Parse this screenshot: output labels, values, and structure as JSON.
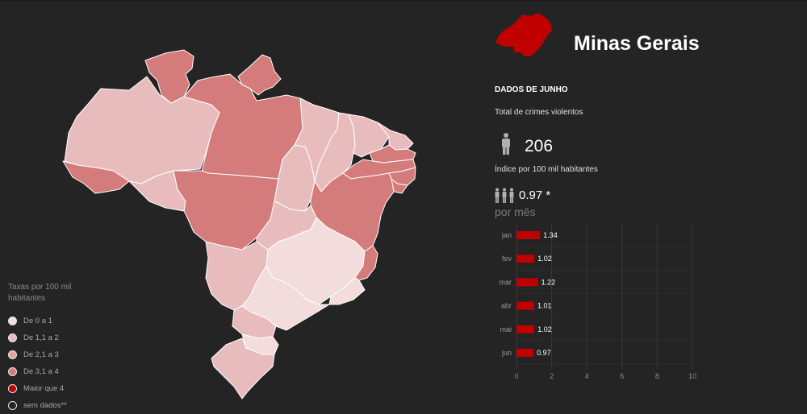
{
  "header": {
    "state_name": "Minas Gerais",
    "month_title": "DADOS DE JUNHO",
    "crimes_label": "Total de crimes violentos",
    "crimes_value": "206",
    "index_label": "Índice por 100 mil habitantes",
    "index_value": "0.97 *",
    "per_month_label": "por mês",
    "state_icon": "minas-gerais-silhouette-icon"
  },
  "legend": {
    "title": "Taxas por 100 mil habitantes",
    "items": [
      {
        "label": "De 0 a 1",
        "color": "#f2dcdc"
      },
      {
        "label": "De 1,1 a 2",
        "color": "#e8bcbc"
      },
      {
        "label": "De 2,1 a 3",
        "color": "#dea3a3"
      },
      {
        "label": "De 3,1 a 4",
        "color": "#d47b7b"
      },
      {
        "label": "Maior que 4",
        "color": "#c00000"
      },
      {
        "label": "sem dados**",
        "color": "#242424"
      }
    ]
  },
  "map": {
    "regions": [
      {
        "name": "Roraima",
        "level": 3
      },
      {
        "name": "Amapá",
        "level": 3
      },
      {
        "name": "Amazonas",
        "level": 1
      },
      {
        "name": "Pará",
        "level": 3
      },
      {
        "name": "Acre",
        "level": 3
      },
      {
        "name": "Rondônia",
        "level": 1
      },
      {
        "name": "Mato Grosso",
        "level": 3
      },
      {
        "name": "Tocantins",
        "level": 1
      },
      {
        "name": "Maranhão",
        "level": 1
      },
      {
        "name": "Piauí",
        "level": 1
      },
      {
        "name": "Ceará",
        "level": 1
      },
      {
        "name": "Rio Grande do Norte",
        "level": 1
      },
      {
        "name": "Paraíba",
        "level": 3
      },
      {
        "name": "Pernambuco",
        "level": 3
      },
      {
        "name": "Alagoas",
        "level": 3
      },
      {
        "name": "Sergipe",
        "level": 3
      },
      {
        "name": "Bahia",
        "level": 3
      },
      {
        "name": "Goiás",
        "level": 1
      },
      {
        "name": "Distrito Federal",
        "level": 1
      },
      {
        "name": "Mato Grosso do Sul",
        "level": 1
      },
      {
        "name": "Minas Gerais",
        "level": 0
      },
      {
        "name": "Espírito Santo",
        "level": 3
      },
      {
        "name": "Rio de Janeiro",
        "level": 0
      },
      {
        "name": "São Paulo",
        "level": 0
      },
      {
        "name": "Paraná",
        "level": 1
      },
      {
        "name": "Santa Catarina",
        "level": 0
      },
      {
        "name": "Rio Grande do Sul",
        "level": 1
      }
    ]
  },
  "chart_data": {
    "type": "bar",
    "orientation": "horizontal",
    "categories": [
      "jan",
      "fev",
      "mar",
      "abr",
      "mai",
      "jun"
    ],
    "values": [
      1.34,
      1.02,
      1.22,
      1.01,
      1.02,
      0.97
    ],
    "value_labels": [
      "1.34",
      "1.02",
      "1.22",
      "1.01",
      "1.02",
      "0.97"
    ],
    "xlim": [
      0,
      10
    ],
    "xticks": [
      "0",
      "2",
      "4",
      "6",
      "8",
      "10"
    ],
    "bar_color": "#c00000",
    "grid": true
  }
}
